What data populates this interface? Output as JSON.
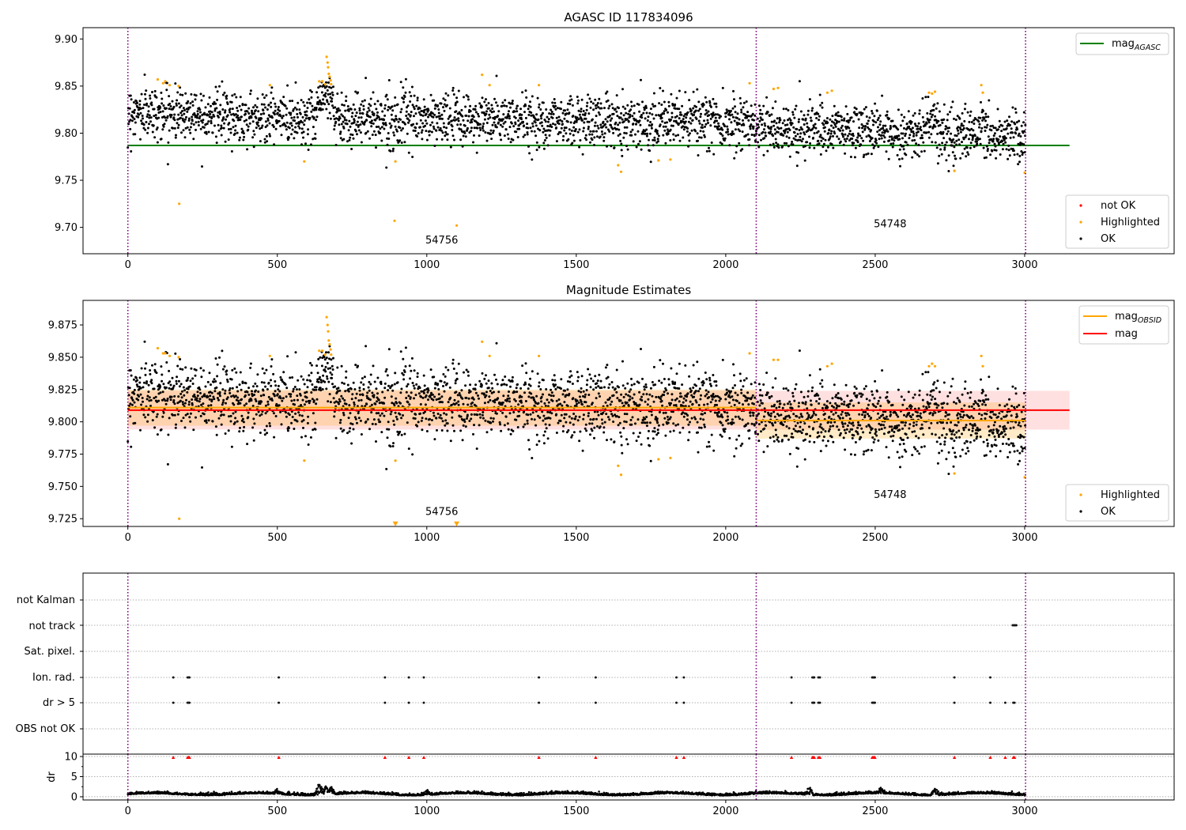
{
  "chart_data": [
    {
      "type": "scatter",
      "title": "AGASC ID 117834096",
      "xlim": [
        -150,
        3500
      ],
      "ylim": [
        9.672,
        9.912
      ],
      "x_ticks": [
        0,
        500,
        1000,
        1500,
        2000,
        2500,
        3000
      ],
      "x_tick_labels": [
        "0",
        "500",
        "1000",
        "1500",
        "2000",
        "2500",
        "3000"
      ],
      "y_ticks": [
        9.7,
        9.75,
        9.8,
        9.85,
        9.9
      ],
      "y_tick_labels": [
        "9.70",
        "9.75",
        "9.80",
        "9.85",
        "9.90"
      ],
      "obs_boundaries": [
        0,
        2102,
        3003
      ],
      "obs_labels": [
        {
          "text": "54756",
          "x": 1050,
          "y": 9.683
        },
        {
          "text": "54748",
          "x": 2550,
          "y": 9.7
        }
      ],
      "mag_agasc": 9.787,
      "mag_agasc_xrange": [
        0,
        3150
      ],
      "legend_top": {
        "label_main": "mag",
        "label_sub": "AGASC",
        "color": "#008000"
      },
      "legend_bottom": [
        {
          "label": "not OK",
          "color": "#ff0000"
        },
        {
          "label": "Highlighted",
          "color": "#ffa500"
        },
        {
          "label": "OK",
          "color": "#000000"
        }
      ],
      "highlighted_points": [
        [
          100,
          9.857
        ],
        [
          118,
          9.853
        ],
        [
          125,
          9.855
        ],
        [
          140,
          9.851
        ],
        [
          170,
          9.85
        ],
        [
          172,
          9.725
        ],
        [
          475,
          9.851
        ],
        [
          590,
          9.77
        ],
        [
          640,
          9.855
        ],
        [
          650,
          9.855
        ],
        [
          660,
          9.852
        ],
        [
          665,
          9.881
        ],
        [
          668,
          9.875
        ],
        [
          670,
          9.87
        ],
        [
          672,
          9.863
        ],
        [
          675,
          9.86
        ],
        [
          678,
          9.856
        ],
        [
          680,
          9.852
        ],
        [
          892,
          9.707
        ],
        [
          895,
          9.77
        ],
        [
          1100,
          9.702
        ],
        [
          1185,
          9.862
        ],
        [
          1210,
          9.851
        ],
        [
          1375,
          9.851
        ],
        [
          1640,
          9.766
        ],
        [
          1650,
          9.759
        ],
        [
          1775,
          9.771
        ],
        [
          1815,
          9.772
        ],
        [
          2080,
          9.853
        ],
        [
          2160,
          9.847
        ],
        [
          2175,
          9.848
        ],
        [
          2340,
          9.843
        ],
        [
          2355,
          9.845
        ],
        [
          2680,
          9.843
        ],
        [
          2690,
          9.842
        ],
        [
          2700,
          9.844
        ],
        [
          2765,
          9.76
        ],
        [
          2855,
          9.851
        ],
        [
          2860,
          9.843
        ],
        [
          3000,
          9.758
        ]
      ]
    },
    {
      "type": "scatter",
      "title": "Magnitude Estimates",
      "xlim": [
        -150,
        3500
      ],
      "ylim": [
        9.719,
        9.894
      ],
      "x_ticks": [
        0,
        500,
        1000,
        1500,
        2000,
        2500,
        3000
      ],
      "x_tick_labels": [
        "0",
        "500",
        "1000",
        "1500",
        "2000",
        "2500",
        "3000"
      ],
      "y_ticks": [
        9.725,
        9.75,
        9.775,
        9.8,
        9.825,
        9.85,
        9.875
      ],
      "y_tick_labels": [
        "9.725",
        "9.750",
        "9.775",
        "9.800",
        "9.825",
        "9.850",
        "9.875"
      ],
      "obs_boundaries": [
        0,
        2102,
        3003
      ],
      "obs_labels": [
        {
          "text": "54756",
          "x": 1050,
          "y": 9.728
        },
        {
          "text": "54748",
          "x": 2550,
          "y": 9.741
        }
      ],
      "mag": 9.809,
      "mag_band": [
        9.794,
        9.824
      ],
      "mag_xrange": [
        0,
        3150
      ],
      "mag_obsid_segments": [
        {
          "x": [
            0,
            2102
          ],
          "y": 9.811,
          "band": [
            9.797,
            9.825
          ]
        },
        {
          "x": [
            2102,
            3003
          ],
          "y": 9.801,
          "band": [
            9.787,
            9.815
          ]
        }
      ],
      "clipped_low_markers": [
        [
          895,
          9.721
        ],
        [
          1100,
          9.721
        ]
      ],
      "legend_top": [
        {
          "label_main": "mag",
          "label_sub": "OBSID",
          "color": "#ffa500"
        },
        {
          "label_main": "mag",
          "label_sub": "",
          "color": "#ff0000"
        }
      ],
      "legend_bottom": [
        {
          "label": "Highlighted",
          "color": "#ffa500"
        },
        {
          "label": "OK",
          "color": "#000000"
        }
      ],
      "highlighted_points": [
        [
          100,
          9.857
        ],
        [
          118,
          9.853
        ],
        [
          125,
          9.853
        ],
        [
          140,
          9.851
        ],
        [
          170,
          9.85
        ],
        [
          172,
          9.725
        ],
        [
          475,
          9.851
        ],
        [
          590,
          9.77
        ],
        [
          640,
          9.855
        ],
        [
          650,
          9.855
        ],
        [
          660,
          9.852
        ],
        [
          665,
          9.881
        ],
        [
          668,
          9.875
        ],
        [
          670,
          9.87
        ],
        [
          672,
          9.863
        ],
        [
          675,
          9.86
        ],
        [
          678,
          9.856
        ],
        [
          680,
          9.852
        ],
        [
          895,
          9.77
        ],
        [
          1185,
          9.862
        ],
        [
          1210,
          9.851
        ],
        [
          1375,
          9.851
        ],
        [
          1640,
          9.766
        ],
        [
          1650,
          9.759
        ],
        [
          1775,
          9.771
        ],
        [
          1815,
          9.772
        ],
        [
          2080,
          9.853
        ],
        [
          2160,
          9.848
        ],
        [
          2175,
          9.848
        ],
        [
          2340,
          9.843
        ],
        [
          2355,
          9.845
        ],
        [
          2680,
          9.843
        ],
        [
          2690,
          9.845
        ],
        [
          2700,
          9.843
        ],
        [
          2765,
          9.76
        ],
        [
          2855,
          9.851
        ],
        [
          2860,
          9.843
        ],
        [
          3000,
          9.757
        ]
      ]
    },
    {
      "type": "scatter",
      "title": "",
      "xlim": [
        -150,
        3500
      ],
      "categories": [
        "not Kalman",
        "not track",
        "Sat. pixel.",
        "Ion. rad.",
        "dr > 5",
        "OBS not OK"
      ],
      "flags": {
        "not track": [
          2960,
          2963,
          2966,
          2969,
          2972
        ],
        "Ion. rad.": [
          152,
          200,
          203,
          206,
          505,
          860,
          940,
          990,
          1375,
          1565,
          1835,
          1860,
          2220,
          2290,
          2293,
          2296,
          2310,
          2315,
          2490,
          2493,
          2496,
          2499,
          2765,
          2885
        ],
        "dr > 5": [
          152,
          200,
          203,
          206,
          505,
          860,
          940,
          990,
          1375,
          1565,
          1835,
          1860,
          2220,
          2290,
          2293,
          2296,
          2310,
          2315,
          2490,
          2493,
          2496,
          2499,
          2765,
          2885,
          2935,
          2962,
          2966
        ]
      },
      "obs_boundaries": [
        0,
        2102,
        3003
      ]
    },
    {
      "type": "scatter",
      "title": "",
      "ylabel": "dr",
      "xlim": [
        -150,
        3500
      ],
      "ylim": [
        -0.8,
        10.6
      ],
      "y_ticks": [
        0,
        5,
        10
      ],
      "y_tick_labels": [
        "0",
        "5",
        "10"
      ],
      "x_ticks": [
        0,
        500,
        1000,
        1500,
        2000,
        2500,
        3000
      ],
      "x_tick_labels": [
        "0",
        "500",
        "1000",
        "1500",
        "2000",
        "2500",
        "3000"
      ],
      "obs_boundaries": [
        0,
        2102,
        3003
      ],
      "clipped_high_x": [
        152,
        200,
        203,
        206,
        505,
        860,
        940,
        990,
        1375,
        1565,
        1835,
        1860,
        2220,
        2290,
        2293,
        2296,
        2310,
        2315,
        2490,
        2493,
        2496,
        2499,
        2765,
        2885,
        2935,
        2962,
        2966
      ],
      "bumps": [
        [
          640,
          3.6
        ],
        [
          660,
          2.6
        ],
        [
          680,
          2.2
        ],
        [
          500,
          1.3
        ],
        [
          1000,
          1.3
        ],
        [
          2280,
          2.0
        ],
        [
          2700,
          1.8
        ],
        [
          2520,
          1.6
        ]
      ]
    }
  ]
}
